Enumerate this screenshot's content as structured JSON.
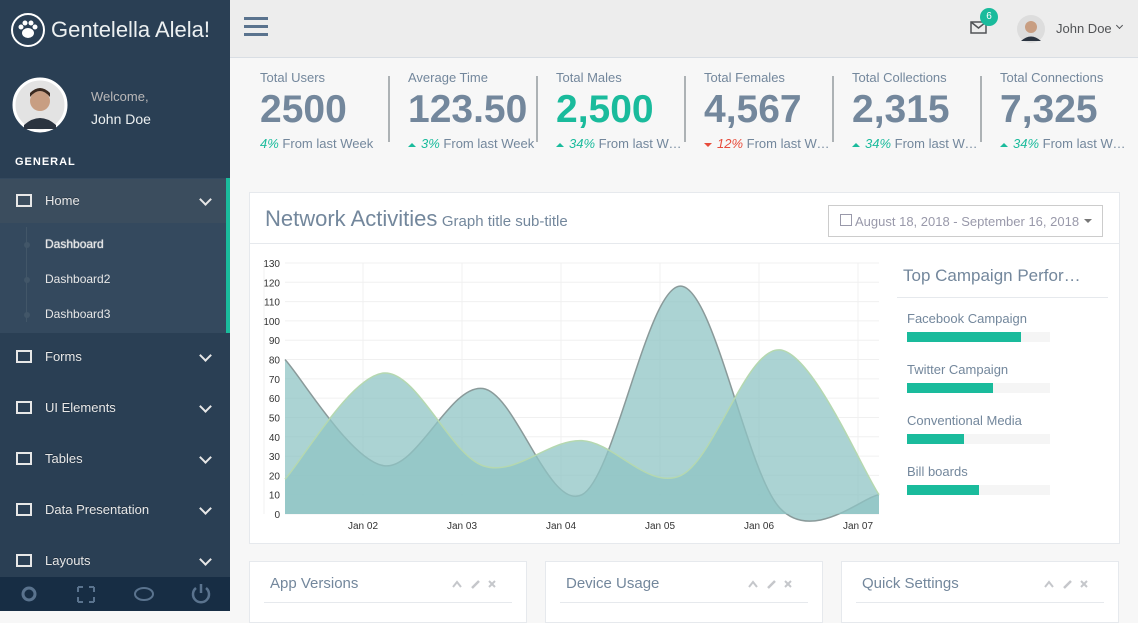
{
  "sidebar": {
    "brand": "Gentelella Alela!",
    "welcome": "Welcome,",
    "user": "John Doe",
    "section": "GENERAL",
    "menu": [
      {
        "label": "Home",
        "children": [
          "Dashboard",
          "Dashboard2",
          "Dashboard3"
        ]
      },
      {
        "label": "Forms"
      },
      {
        "label": "UI Elements"
      },
      {
        "label": "Tables"
      },
      {
        "label": "Data Presentation"
      },
      {
        "label": "Layouts"
      }
    ]
  },
  "topbar": {
    "badge": "6",
    "user": "John Doe"
  },
  "stats": [
    {
      "label": "Total Users",
      "value": "2500",
      "change": "4%",
      "note": "From last Week"
    },
    {
      "label": "Average Time",
      "value": "123.50",
      "change": "3%",
      "trend": "up",
      "note": "From last Week"
    },
    {
      "label": "Total Males",
      "value": "2,500",
      "highlight": true,
      "change": "34%",
      "trend": "up",
      "note": "From last Week"
    },
    {
      "label": "Total Females",
      "value": "4,567",
      "change": "12%",
      "trend": "down",
      "note": "From last Week"
    },
    {
      "label": "Total Collections",
      "value": "2,315",
      "change": "34%",
      "trend": "up",
      "note": "From last Week"
    },
    {
      "label": "Total Connections",
      "value": "7,325",
      "change": "34%",
      "trend": "up",
      "note": "From last Week"
    }
  ],
  "panel": {
    "title": "Network Activities",
    "subtitle": "Graph title sub-title",
    "daterange": "August 18, 2018 - September 16, 2018"
  },
  "chart_data": {
    "type": "area",
    "categories": [
      null,
      "Jan 02",
      "Jan 03",
      "Jan 04",
      "Jan 05",
      "Jan 06",
      "Jan 07"
    ],
    "series": [
      {
        "color": "#8fc4c4",
        "values": [
          80,
          25,
          65,
          10,
          118,
          3,
          10
        ]
      },
      {
        "color": "#8fc4c4",
        "values": [
          18,
          73,
          25,
          38,
          20,
          85,
          10
        ]
      }
    ],
    "ylim": [
      0,
      130
    ],
    "yticks": [
      0,
      10,
      20,
      30,
      40,
      50,
      60,
      70,
      80,
      90,
      100,
      110,
      120,
      130
    ],
    "grid": true
  },
  "campaigns": {
    "title": "Top Campaign Performance",
    "items": [
      {
        "name": "Facebook Campaign",
        "value": 80
      },
      {
        "name": "Twitter Campaign",
        "value": 60
      },
      {
        "name": "Conventional Media",
        "value": 40
      },
      {
        "name": "Bill boards",
        "value": 50
      }
    ]
  },
  "widgets": [
    "App Versions",
    "Device Usage",
    "Quick Settings"
  ]
}
